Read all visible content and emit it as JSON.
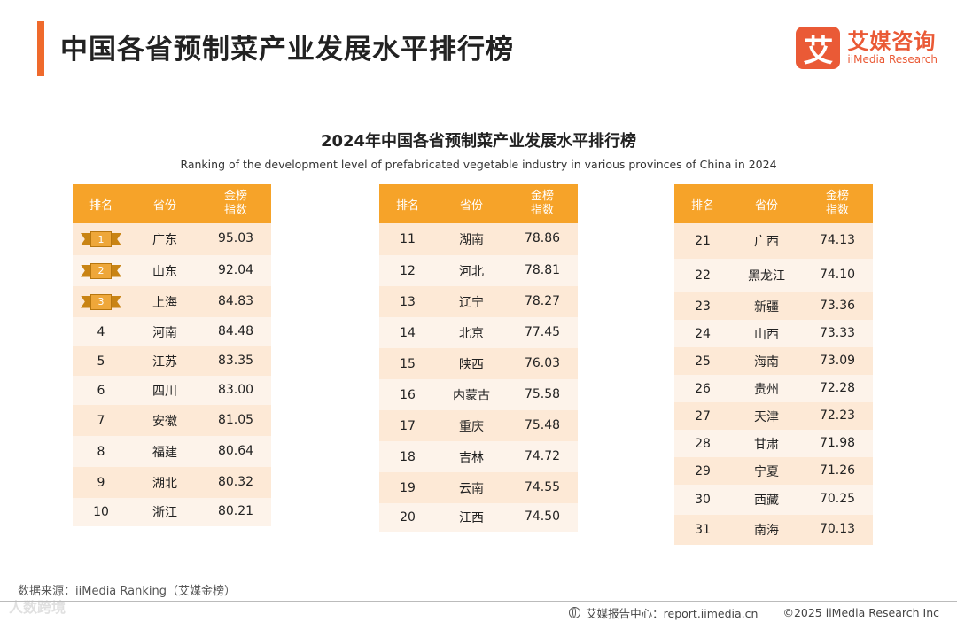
{
  "page": {
    "title": "中国各省预制菜产业发展水平排行榜",
    "logo": {
      "mark": "艾",
      "name_cn": "艾媒咨询",
      "name_en": "iiMedia Research"
    }
  },
  "table": {
    "title": "2024年中国各省预制菜产业发展水平排行榜",
    "subtitle": "Ranking of the development level of prefabricated vegetable industry in various provinces of China in 2024",
    "headers": {
      "rank": "排名",
      "province": "省份",
      "index_line1": "金榜",
      "index_line2": "指数"
    },
    "columns": [
      [
        {
          "rank": "1",
          "province": "广东",
          "index": "95.03"
        },
        {
          "rank": "2",
          "province": "山东",
          "index": "92.04"
        },
        {
          "rank": "3",
          "province": "上海",
          "index": "84.83"
        },
        {
          "rank": "4",
          "province": "河南",
          "index": "84.48"
        },
        {
          "rank": "5",
          "province": "江苏",
          "index": "83.35"
        },
        {
          "rank": "6",
          "province": "四川",
          "index": "83.00"
        },
        {
          "rank": "7",
          "province": "安徽",
          "index": "81.05"
        },
        {
          "rank": "8",
          "province": "福建",
          "index": "80.64"
        },
        {
          "rank": "9",
          "province": "湖北",
          "index": "80.32"
        },
        {
          "rank": "10",
          "province": "浙江",
          "index": "80.21"
        }
      ],
      [
        {
          "rank": "11",
          "province": "湖南",
          "index": "78.86"
        },
        {
          "rank": "12",
          "province": "河北",
          "index": "78.81"
        },
        {
          "rank": "13",
          "province": "辽宁",
          "index": "78.27"
        },
        {
          "rank": "14",
          "province": "北京",
          "index": "77.45"
        },
        {
          "rank": "15",
          "province": "陕西",
          "index": "76.03"
        },
        {
          "rank": "16",
          "province": "内蒙古",
          "index": "75.58"
        },
        {
          "rank": "17",
          "province": "重庆",
          "index": "75.48"
        },
        {
          "rank": "18",
          "province": "吉林",
          "index": "74.72"
        },
        {
          "rank": "19",
          "province": "云南",
          "index": "74.55"
        },
        {
          "rank": "20",
          "province": "江西",
          "index": "74.50"
        }
      ],
      [
        {
          "rank": "21",
          "province": "广西",
          "index": "74.13"
        },
        {
          "rank": "22",
          "province": "黑龙江",
          "index": "74.10"
        },
        {
          "rank": "23",
          "province": "新疆",
          "index": "73.36"
        },
        {
          "rank": "24",
          "province": "山西",
          "index": "73.33"
        },
        {
          "rank": "25",
          "province": "海南",
          "index": "73.09"
        },
        {
          "rank": "26",
          "province": "贵州",
          "index": "72.28"
        },
        {
          "rank": "27",
          "province": "天津",
          "index": "72.23"
        },
        {
          "rank": "28",
          "province": "甘肃",
          "index": "71.98"
        },
        {
          "rank": "29",
          "province": "宁夏",
          "index": "71.26"
        },
        {
          "rank": "30",
          "province": "西藏",
          "index": "70.25"
        },
        {
          "rank": "31",
          "province": "南海",
          "index": "70.13"
        }
      ]
    ]
  },
  "footer": {
    "source": "数据来源：iiMedia Ranking（艾媒金榜）",
    "watermark": "人数跨境",
    "report_center": "艾媒报告中心：report.iimedia.cn",
    "copyright": "©2025  iiMedia Research  Inc"
  },
  "colors": {
    "accent": "#ef6a2c",
    "header": "#f6a329",
    "row_odd": "#fde9d6",
    "row_even": "#fdf3ea",
    "logo": "#ea5a36"
  }
}
